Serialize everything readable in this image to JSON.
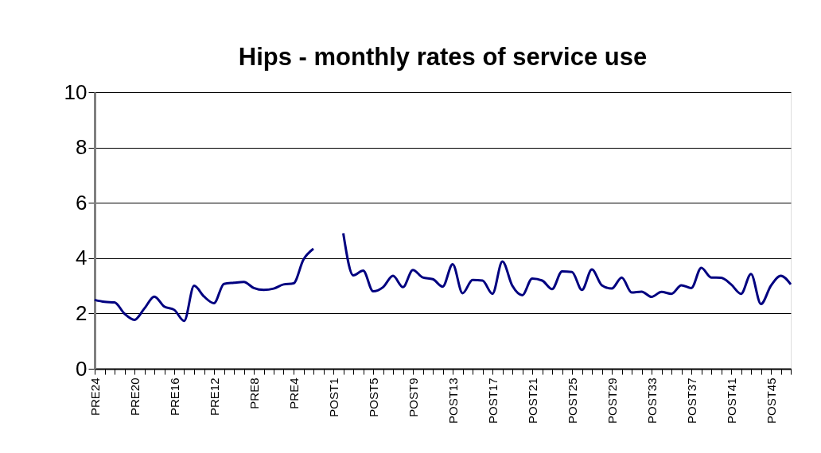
{
  "chart_data": {
    "type": "line",
    "title": "Hips - monthly rates of service use",
    "categories": [
      "PRE24",
      null,
      null,
      null,
      "PRE20",
      null,
      null,
      null,
      "PRE16",
      null,
      null,
      null,
      "PRE12",
      null,
      null,
      null,
      "PRE8",
      null,
      null,
      null,
      "PRE4",
      null,
      null,
      null,
      "POST1",
      null,
      null,
      null,
      "POST5",
      null,
      null,
      null,
      "POST9",
      null,
      null,
      null,
      "POST13",
      null,
      null,
      null,
      "POST17",
      null,
      null,
      null,
      "POST21",
      null,
      null,
      null,
      "POST25",
      null,
      null,
      null,
      "POST29",
      null,
      null,
      null,
      "POST33",
      null,
      null,
      null,
      "POST37",
      null,
      null,
      null,
      "POST41",
      null,
      null,
      null,
      "POST45",
      null,
      null
    ],
    "series": [
      {
        "color": "#000080",
        "values": [
          2.49,
          2.42,
          2.4,
          1.99,
          1.77,
          2.18,
          2.61,
          2.25,
          2.13,
          1.73,
          3.0,
          2.61,
          2.37,
          3.07,
          3.11,
          3.14,
          2.92,
          2.85,
          2.9,
          3.05,
          3.09,
          3.95,
          4.34,
          null,
          null,
          4.9,
          3.38,
          3.55,
          2.8,
          2.95,
          3.36,
          2.95,
          3.57,
          3.3,
          3.24,
          2.97,
          3.78,
          2.73,
          3.21,
          3.19,
          2.71,
          3.88,
          3.0,
          2.66,
          3.26,
          3.19,
          2.88,
          3.52,
          3.5,
          2.85,
          3.59,
          3.02,
          2.9,
          3.3,
          2.76,
          2.79,
          2.6,
          2.78,
          2.71,
          3.02,
          2.92,
          3.65,
          3.3,
          3.29,
          3.05,
          2.71,
          3.43,
          2.34,
          3.0,
          3.36,
          3.05
        ]
      }
    ],
    "ylim": [
      0,
      10
    ],
    "yticks": [
      0,
      2,
      4,
      6,
      8,
      10
    ],
    "grid": "y",
    "marker": "none",
    "line_style": "solid"
  }
}
